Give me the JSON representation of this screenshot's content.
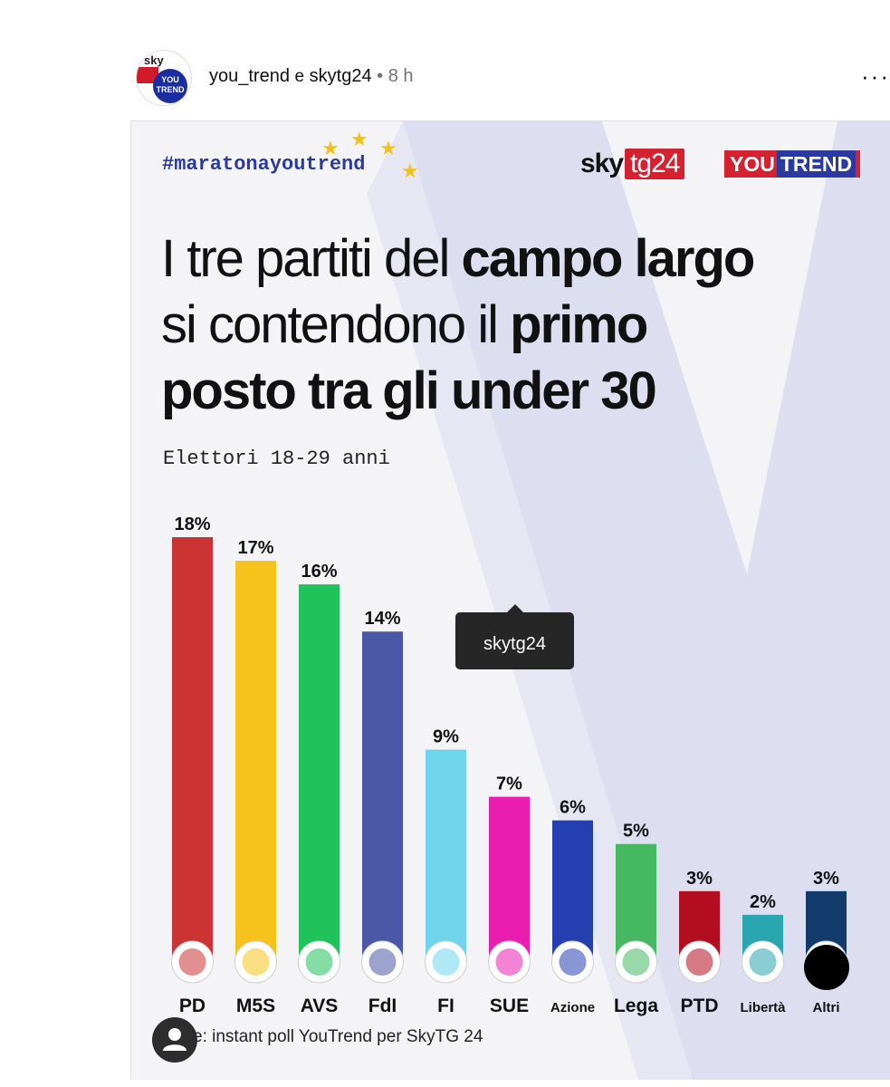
{
  "post": {
    "author1": "you_trend",
    "conjunction": "e",
    "author2": "skytg24",
    "separator": "•",
    "time": "8 h",
    "more": "···",
    "avatar": {
      "top": "sky",
      "bottom": "YOU TREND"
    }
  },
  "card": {
    "hashtag": "#maratonayoutrend",
    "logo_sky": "sky",
    "logo_tg": "tg24",
    "logo_you": "YOU",
    "logo_trend": "TREND",
    "title_parts": [
      "I tre partiti del ",
      "campo largo",
      "si contendono il ",
      "primo",
      "posto tra gli under 30"
    ],
    "subtitle": "Elettori 18-29 anni",
    "source": "Fonte: instant poll YouTrend per SkyTG 24"
  },
  "tooltip": "skytg24",
  "colors": {
    "brand_red": "#d52230",
    "brand_blue": "#2b3aa0",
    "background": "#f4f4f6"
  },
  "chart_data": {
    "type": "bar",
    "categories": [
      "PD",
      "M5S",
      "AVS",
      "FdI",
      "FI",
      "SUE",
      "Azione",
      "Lega",
      "PTD",
      "Libertà",
      "Altri"
    ],
    "values": [
      18,
      17,
      16,
      14,
      9,
      7,
      6,
      5,
      3,
      2,
      3
    ],
    "value_labels": [
      "18%",
      "17%",
      "16%",
      "14%",
      "9%",
      "7%",
      "6%",
      "5%",
      "3%",
      "2%",
      "3%"
    ],
    "colors": [
      "#cc3333",
      "#f6c21c",
      "#1fc35a",
      "#4a58a8",
      "#6fd5ec",
      "#e91eb0",
      "#2440b0",
      "#45b861",
      "#b30d20",
      "#2aa6b0",
      "#123a6b"
    ],
    "title": "I tre partiti del campo largo si contendono il primo posto tra gli under 30",
    "subtitle": "Elettori 18-29 anni",
    "ylim": [
      0,
      18
    ],
    "grid": false
  }
}
